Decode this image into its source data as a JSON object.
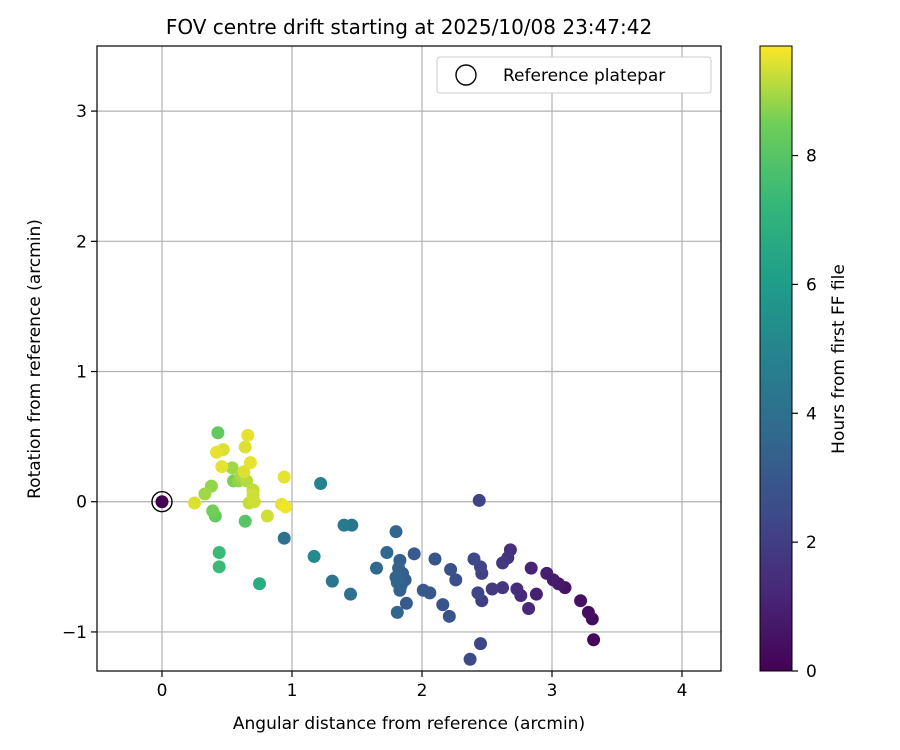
{
  "chart_data": {
    "type": "scatter",
    "title": "FOV centre drift starting at 2025/10/08 23:47:42",
    "xlabel": "Angular distance from reference (arcmin)",
    "ylabel": "Rotation from reference (arcmin)",
    "xlim": [
      -0.5,
      4.3
    ],
    "ylim": [
      -1.3,
      3.5
    ],
    "xticks": [
      0,
      1,
      2,
      3,
      4
    ],
    "yticks": [
      -1,
      0,
      1,
      2,
      3
    ],
    "xtick_labels": [
      "0",
      "1",
      "2",
      "3",
      "4"
    ],
    "ytick_labels": [
      "−1",
      "0",
      "1",
      "2",
      "3"
    ],
    "grid": true,
    "legend": {
      "position": "top-right",
      "label": "Reference platepar"
    },
    "reference_point": {
      "x": 0,
      "y": 0,
      "hours": 0
    },
    "colorbar": {
      "label": "Hours from first FF file",
      "range": [
        0,
        9.7
      ],
      "ticks": [
        0,
        2,
        4,
        6,
        8
      ],
      "tick_labels": [
        "0",
        "2",
        "4",
        "6",
        "8"
      ],
      "colormap": "viridis"
    },
    "points": [
      {
        "x": 3.32,
        "y": -1.06,
        "hours": 0.2
      },
      {
        "x": 3.31,
        "y": -0.9,
        "hours": 0.3
      },
      {
        "x": 3.28,
        "y": -0.85,
        "hours": 0.4
      },
      {
        "x": 3.22,
        "y": -0.76,
        "hours": 0.5
      },
      {
        "x": 3.1,
        "y": -0.66,
        "hours": 0.6
      },
      {
        "x": 3.05,
        "y": -0.63,
        "hours": 0.7
      },
      {
        "x": 3.01,
        "y": -0.6,
        "hours": 0.8
      },
      {
        "x": 2.96,
        "y": -0.55,
        "hours": 0.9
      },
      {
        "x": 2.88,
        "y": -0.71,
        "hours": 1.0
      },
      {
        "x": 2.84,
        "y": -0.51,
        "hours": 1.1
      },
      {
        "x": 2.82,
        "y": -0.82,
        "hours": 1.2
      },
      {
        "x": 2.76,
        "y": -0.72,
        "hours": 1.3
      },
      {
        "x": 2.73,
        "y": -0.67,
        "hours": 1.4
      },
      {
        "x": 2.68,
        "y": -0.37,
        "hours": 1.5
      },
      {
        "x": 2.66,
        "y": -0.43,
        "hours": 1.6
      },
      {
        "x": 2.62,
        "y": -0.66,
        "hours": 1.7
      },
      {
        "x": 2.62,
        "y": -0.47,
        "hours": 1.8
      },
      {
        "x": 2.54,
        "y": -0.67,
        "hours": 1.9
      },
      {
        "x": 2.46,
        "y": -0.76,
        "hours": 2.0
      },
      {
        "x": 2.46,
        "y": -0.55,
        "hours": 2.1
      },
      {
        "x": 2.45,
        "y": -0.5,
        "hours": 2.2
      },
      {
        "x": 2.44,
        "y": 0.01,
        "hours": 2.2
      },
      {
        "x": 2.45,
        "y": -1.09,
        "hours": 2.3
      },
      {
        "x": 2.43,
        "y": -0.7,
        "hours": 2.3
      },
      {
        "x": 2.4,
        "y": -0.44,
        "hours": 2.4
      },
      {
        "x": 2.37,
        "y": -1.21,
        "hours": 2.5
      },
      {
        "x": 2.26,
        "y": -0.6,
        "hours": 2.6
      },
      {
        "x": 2.22,
        "y": -0.52,
        "hours": 2.7
      },
      {
        "x": 2.21,
        "y": -0.88,
        "hours": 2.8
      },
      {
        "x": 2.16,
        "y": -0.79,
        "hours": 2.8
      },
      {
        "x": 2.1,
        "y": -0.44,
        "hours": 2.9
      },
      {
        "x": 2.06,
        "y": -0.7,
        "hours": 3.0
      },
      {
        "x": 2.01,
        "y": -0.68,
        "hours": 3.0
      },
      {
        "x": 1.94,
        "y": -0.4,
        "hours": 3.1
      },
      {
        "x": 1.88,
        "y": -0.78,
        "hours": 3.1
      },
      {
        "x": 1.87,
        "y": -0.6,
        "hours": 3.2
      },
      {
        "x": 1.85,
        "y": -0.55,
        "hours": 3.2
      },
      {
        "x": 1.84,
        "y": -0.64,
        "hours": 3.3
      },
      {
        "x": 1.83,
        "y": -0.45,
        "hours": 3.3
      },
      {
        "x": 1.83,
        "y": -0.68,
        "hours": 3.4
      },
      {
        "x": 1.82,
        "y": -0.51,
        "hours": 3.4
      },
      {
        "x": 1.81,
        "y": -0.62,
        "hours": 3.5
      },
      {
        "x": 1.8,
        "y": -0.58,
        "hours": 3.5
      },
      {
        "x": 1.81,
        "y": -0.85,
        "hours": 3.6
      },
      {
        "x": 1.8,
        "y": -0.23,
        "hours": 3.6
      },
      {
        "x": 1.73,
        "y": -0.39,
        "hours": 3.7
      },
      {
        "x": 1.65,
        "y": -0.51,
        "hours": 3.8
      },
      {
        "x": 1.45,
        "y": -0.71,
        "hours": 4.0
      },
      {
        "x": 1.46,
        "y": -0.18,
        "hours": 4.3
      },
      {
        "x": 1.4,
        "y": -0.18,
        "hours": 4.5
      },
      {
        "x": 1.31,
        "y": -0.61,
        "hours": 4.3
      },
      {
        "x": 1.22,
        "y": 0.14,
        "hours": 4.9
      },
      {
        "x": 1.17,
        "y": -0.42,
        "hours": 5.2
      },
      {
        "x": 0.94,
        "y": -0.28,
        "hours": 4.0
      },
      {
        "x": 0.75,
        "y": -0.63,
        "hours": 6.8
      },
      {
        "x": 0.44,
        "y": -0.5,
        "hours": 7.4
      },
      {
        "x": 0.44,
        "y": -0.39,
        "hours": 7.4
      },
      {
        "x": 0.41,
        "y": -0.11,
        "hours": 8.3
      },
      {
        "x": 0.39,
        "y": -0.07,
        "hours": 8.5
      },
      {
        "x": 0.43,
        "y": 0.53,
        "hours": 8.2
      },
      {
        "x": 0.64,
        "y": -0.15,
        "hours": 8.0
      },
      {
        "x": 0.55,
        "y": 0.16,
        "hours": 8.6
      },
      {
        "x": 0.59,
        "y": 0.16,
        "hours": 8.8
      },
      {
        "x": 0.54,
        "y": 0.26,
        "hours": 8.9
      },
      {
        "x": 0.38,
        "y": 0.12,
        "hours": 8.8
      },
      {
        "x": 0.33,
        "y": 0.06,
        "hours": 8.9
      },
      {
        "x": 0.61,
        "y": 0.2,
        "hours": 9.0
      },
      {
        "x": 0.65,
        "y": 0.16,
        "hours": 9.1
      },
      {
        "x": 0.67,
        "y": -0.01,
        "hours": 9.2
      },
      {
        "x": 0.7,
        "y": 0.09,
        "hours": 9.2
      },
      {
        "x": 0.71,
        "y": 0.0,
        "hours": 9.3
      },
      {
        "x": 0.7,
        "y": 0.05,
        "hours": 9.3
      },
      {
        "x": 0.63,
        "y": 0.23,
        "hours": 9.4
      },
      {
        "x": 0.64,
        "y": 0.42,
        "hours": 9.4
      },
      {
        "x": 0.47,
        "y": 0.4,
        "hours": 9.4
      },
      {
        "x": 0.46,
        "y": 0.27,
        "hours": 9.5
      },
      {
        "x": 0.42,
        "y": 0.38,
        "hours": 9.5
      },
      {
        "x": 0.25,
        "y": -0.01,
        "hours": 9.4
      },
      {
        "x": 0.66,
        "y": 0.51,
        "hours": 9.5
      },
      {
        "x": 0.68,
        "y": 0.3,
        "hours": 9.5
      },
      {
        "x": 0.81,
        "y": -0.11,
        "hours": 9.3
      },
      {
        "x": 0.92,
        "y": -0.02,
        "hours": 9.5
      },
      {
        "x": 0.95,
        "y": -0.04,
        "hours": 9.6
      },
      {
        "x": 0.94,
        "y": 0.19,
        "hours": 9.5
      }
    ]
  }
}
